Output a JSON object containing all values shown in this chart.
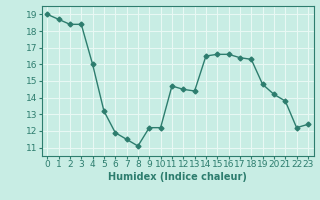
{
  "x": [
    0,
    1,
    2,
    3,
    4,
    5,
    6,
    7,
    8,
    9,
    10,
    11,
    12,
    13,
    14,
    15,
    16,
    17,
    18,
    19,
    20,
    21,
    22,
    23
  ],
  "y": [
    19.0,
    18.7,
    18.4,
    18.4,
    16.0,
    13.2,
    11.9,
    11.5,
    11.1,
    12.2,
    12.2,
    14.7,
    14.5,
    14.4,
    16.5,
    16.6,
    16.6,
    16.4,
    16.3,
    14.8,
    14.2,
    13.8,
    12.2,
    12.4
  ],
  "line_color": "#2d7d6e",
  "marker": "D",
  "marker_size": 2.5,
  "xlabel": "Humidex (Indice chaleur)",
  "xlim": [
    -0.5,
    23.5
  ],
  "ylim": [
    10.5,
    19.5
  ],
  "yticks": [
    11,
    12,
    13,
    14,
    15,
    16,
    17,
    18,
    19
  ],
  "xticks": [
    0,
    1,
    2,
    3,
    4,
    5,
    6,
    7,
    8,
    9,
    10,
    11,
    12,
    13,
    14,
    15,
    16,
    17,
    18,
    19,
    20,
    21,
    22,
    23
  ],
  "bg_color": "#c8ede4",
  "grid_color": "#e8f8f4",
  "font_color": "#2d7d6e",
  "font_size": 6.5,
  "xlabel_fontsize": 7.0,
  "linewidth": 1.0
}
